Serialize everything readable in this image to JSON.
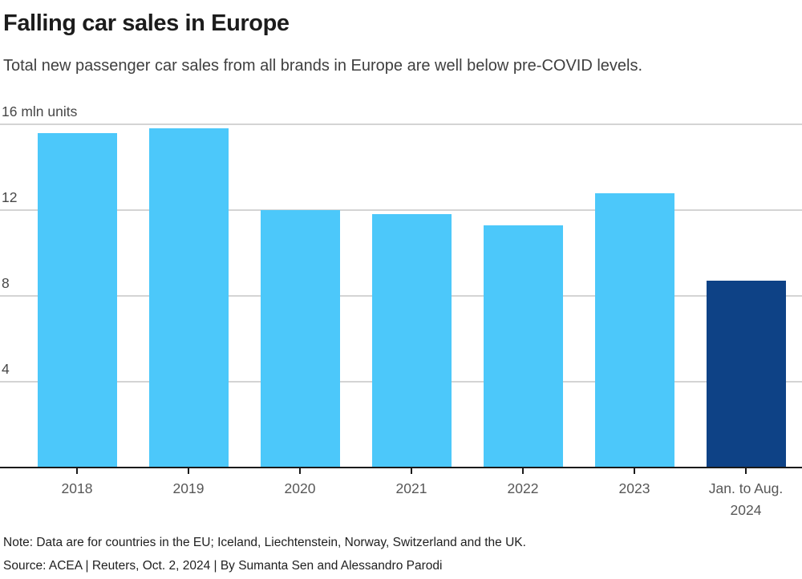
{
  "header": {
    "title": "Falling car sales in Europe",
    "subtitle": "Total new passenger car sales from all brands in Europe are well below pre-COVID levels."
  },
  "chart_data": {
    "type": "bar",
    "title": "Falling car sales in Europe",
    "subtitle": "Total new passenger car sales from all brands in Europe are well below pre-COVID levels.",
    "unit": "mln units",
    "categories": [
      "2018",
      "2019",
      "2020",
      "2021",
      "2022",
      "2023",
      "Jan. to Aug.\n2024"
    ],
    "values": [
      15.6,
      15.8,
      12.0,
      11.8,
      11.3,
      12.8,
      8.7
    ],
    "ylim": [
      0,
      16
    ],
    "y_ticks": [
      {
        "value": 4,
        "label": "4"
      },
      {
        "value": 8,
        "label": "8"
      },
      {
        "value": 12,
        "label": "12"
      },
      {
        "value": 16,
        "label": "16 mln units"
      }
    ],
    "grid": true,
    "legend": false,
    "xlabel": "",
    "ylabel": "mln units",
    "bar_colors": [
      "#4CC8FA",
      "#4CC8FA",
      "#4CC8FA",
      "#4CC8FA",
      "#4CC8FA",
      "#4CC8FA",
      "#0E4286"
    ],
    "colors": {
      "bar_default": "#4CC8FA",
      "bar_highlight": "#0E4286",
      "gridline": "#D4D4D4",
      "axis_line": "#1A1A1A",
      "axis_tick_label": "#575757",
      "title_text": "#1C1C1C",
      "subtitle_text": "#3F3F3F"
    }
  },
  "footer": {
    "note": "Note: Data are for countries in the EU; Iceland, Liechtenstein, Norway, Switzerland and the UK.",
    "source": "Source: ACEA | Reuters, Oct. 2, 2024 | By Sumanta Sen and Alessandro Parodi"
  }
}
